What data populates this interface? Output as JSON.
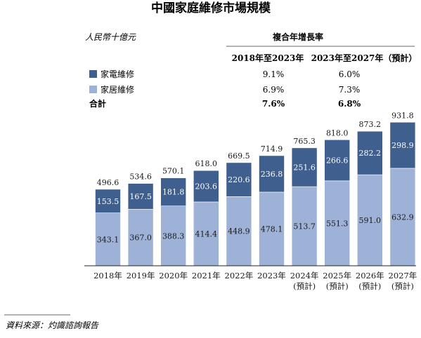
{
  "chart_data": {
    "type": "bar",
    "title": "中國家庭維修市場規模",
    "unit_label": "人民幣十億元",
    "categories": [
      [
        "2018年"
      ],
      [
        "2019年"
      ],
      [
        "2020年"
      ],
      [
        "2021年"
      ],
      [
        "2022年"
      ],
      [
        "2023年"
      ],
      [
        "2024年",
        "(預計)"
      ],
      [
        "2025年",
        "(預計)"
      ],
      [
        "2026年",
        "(預計)"
      ],
      [
        "2027年",
        "(預計)"
      ]
    ],
    "series": [
      {
        "name": "家居維修",
        "color": "#9db2d6",
        "values": [
          343.1,
          367.0,
          388.3,
          414.4,
          448.9,
          478.1,
          513.7,
          551.3,
          591.0,
          632.9
        ]
      },
      {
        "name": "家電維修",
        "color": "#3f5f8f",
        "values": [
          153.5,
          167.5,
          181.8,
          203.6,
          220.6,
          236.8,
          251.6,
          266.6,
          282.2,
          298.9
        ]
      }
    ],
    "totals": [
      496.6,
      534.6,
      570.1,
      618.0,
      669.5,
      714.9,
      765.3,
      818.0,
      873.2,
      931.8
    ],
    "ylim": [
      0,
      1000
    ],
    "stacked": true,
    "cagr_table": {
      "header": "複合年增長率",
      "columns": [
        "2018年至2023年",
        "2023年至2027年（預計）"
      ],
      "rows": [
        {
          "label": "家電維修",
          "values": [
            "9.1%",
            "6.0%"
          ],
          "swatch": "#3f5f8f"
        },
        {
          "label": "家居維修",
          "values": [
            "6.9%",
            "7.3%"
          ],
          "swatch": "#9db2d6"
        },
        {
          "label": "合計",
          "values": [
            "7.6%",
            "6.8%"
          ],
          "bold": true
        }
      ]
    }
  },
  "source_note": "資料來源：灼識諮詢報告"
}
